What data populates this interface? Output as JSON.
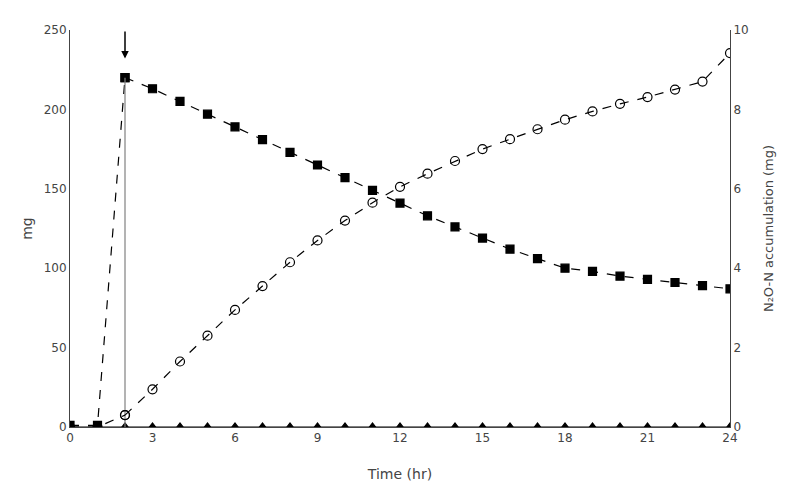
{
  "chart_data": {
    "type": "line",
    "xlabel": "Time (hr)",
    "ylabel": "mg",
    "y2label": "N₂O-N accumulation (mg)",
    "xlim": [
      0,
      24
    ],
    "ylim": [
      0,
      250
    ],
    "y2lim": [
      0,
      10
    ],
    "xticks": [
      0,
      3,
      6,
      9,
      12,
      15,
      18,
      21,
      24
    ],
    "yticks": [
      0,
      50,
      100,
      150,
      200,
      250
    ],
    "y2ticks": [
      0,
      2,
      4,
      6,
      8,
      10
    ],
    "grid": false,
    "series": [
      {
        "axis": "y",
        "color": "black",
        "marker": "square",
        "line_style": "dashed",
        "x": [
          0,
          1,
          2
        ],
        "values": [
          1,
          1,
          220
        ]
      },
      {
        "axis": "y",
        "color": "black",
        "marker": "square",
        "line_style": "dashed",
        "x": [
          2,
          3,
          4,
          5,
          6,
          7,
          8,
          9,
          10,
          11,
          12,
          13,
          14,
          15,
          16,
          17,
          18,
          19,
          20,
          21,
          22,
          23,
          24
        ],
        "values": [
          220,
          213,
          205,
          197,
          189,
          181,
          173,
          165,
          157,
          149,
          141,
          133,
          126,
          119,
          112,
          106,
          100,
          98,
          95,
          93,
          91,
          89,
          87
        ]
      },
      {
        "axis": "y",
        "color": "black",
        "marker": "triangle",
        "line_style": "solid",
        "x": [
          0,
          1,
          2,
          3,
          4,
          5,
          6,
          7,
          8,
          9,
          10,
          11,
          12,
          13,
          14,
          15,
          16,
          17,
          18,
          19,
          20,
          21,
          22,
          23,
          24
        ],
        "values": [
          0,
          0,
          0,
          0,
          0,
          0,
          0,
          0,
          0,
          0,
          0,
          0,
          0,
          0,
          0,
          0,
          0,
          0,
          0,
          0,
          0,
          0,
          0,
          0,
          0
        ]
      },
      {
        "axis": "y2",
        "color": "black",
        "marker": "open circle",
        "line_style": "dashed",
        "x": [
          0,
          1,
          2
        ],
        "values": [
          0,
          0,
          0.3
        ]
      },
      {
        "axis": "y2",
        "color": "black",
        "marker": "open circle",
        "line_style": "dashed",
        "x": [
          2,
          3,
          4,
          5,
          6,
          7,
          8,
          9,
          10,
          11,
          12,
          13,
          14,
          15,
          16,
          17,
          18,
          19,
          20,
          21,
          22,
          23,
          24
        ],
        "values": [
          0.3,
          0.95,
          1.65,
          2.3,
          2.95,
          3.55,
          4.15,
          4.7,
          5.2,
          5.65,
          6.05,
          6.38,
          6.7,
          7.0,
          7.25,
          7.5,
          7.74,
          7.95,
          8.14,
          8.31,
          8.5,
          8.7,
          9.42
        ]
      },
      {
        "axis": "y",
        "color": "gray",
        "marker": "none",
        "line_style": "solid",
        "x": [
          2.0,
          2.0
        ],
        "values": [
          0,
          220
        ]
      }
    ],
    "arrows": [
      {
        "x": 2.0,
        "y": 232,
        "y_start": 250
      }
    ]
  }
}
